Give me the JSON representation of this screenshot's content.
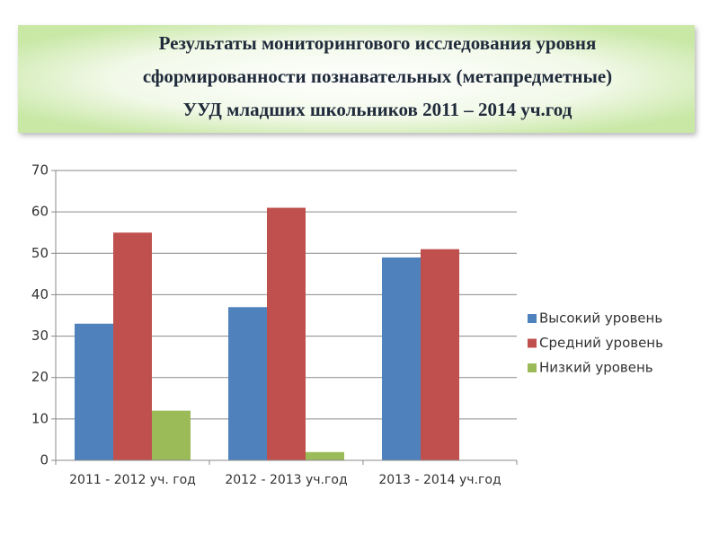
{
  "chart_data": {
    "type": "bar",
    "title": [
      "Результаты мониторингового исследования уровня",
      "сформированности  познавательных (метапредметные)",
      "УУД младших школьников 2011 – 2014 уч.год"
    ],
    "categories": [
      "2011 - 2012 уч. год",
      "2012 - 2013 уч.год",
      "2013 - 2014 уч.год"
    ],
    "series": [
      {
        "name": "Высокий уровень",
        "color": "#4f81bd",
        "values": [
          33,
          37,
          49
        ]
      },
      {
        "name": "Средний уровень",
        "color": "#c0504d",
        "values": [
          55,
          61,
          51
        ]
      },
      {
        "name": "Низкий уровень",
        "color": "#9bbb59",
        "values": [
          12,
          2,
          0
        ]
      }
    ],
    "ylim": [
      0,
      70
    ],
    "yticks": [
      0,
      10,
      20,
      30,
      40,
      50,
      60,
      70
    ],
    "grid": true,
    "legend": "right"
  }
}
